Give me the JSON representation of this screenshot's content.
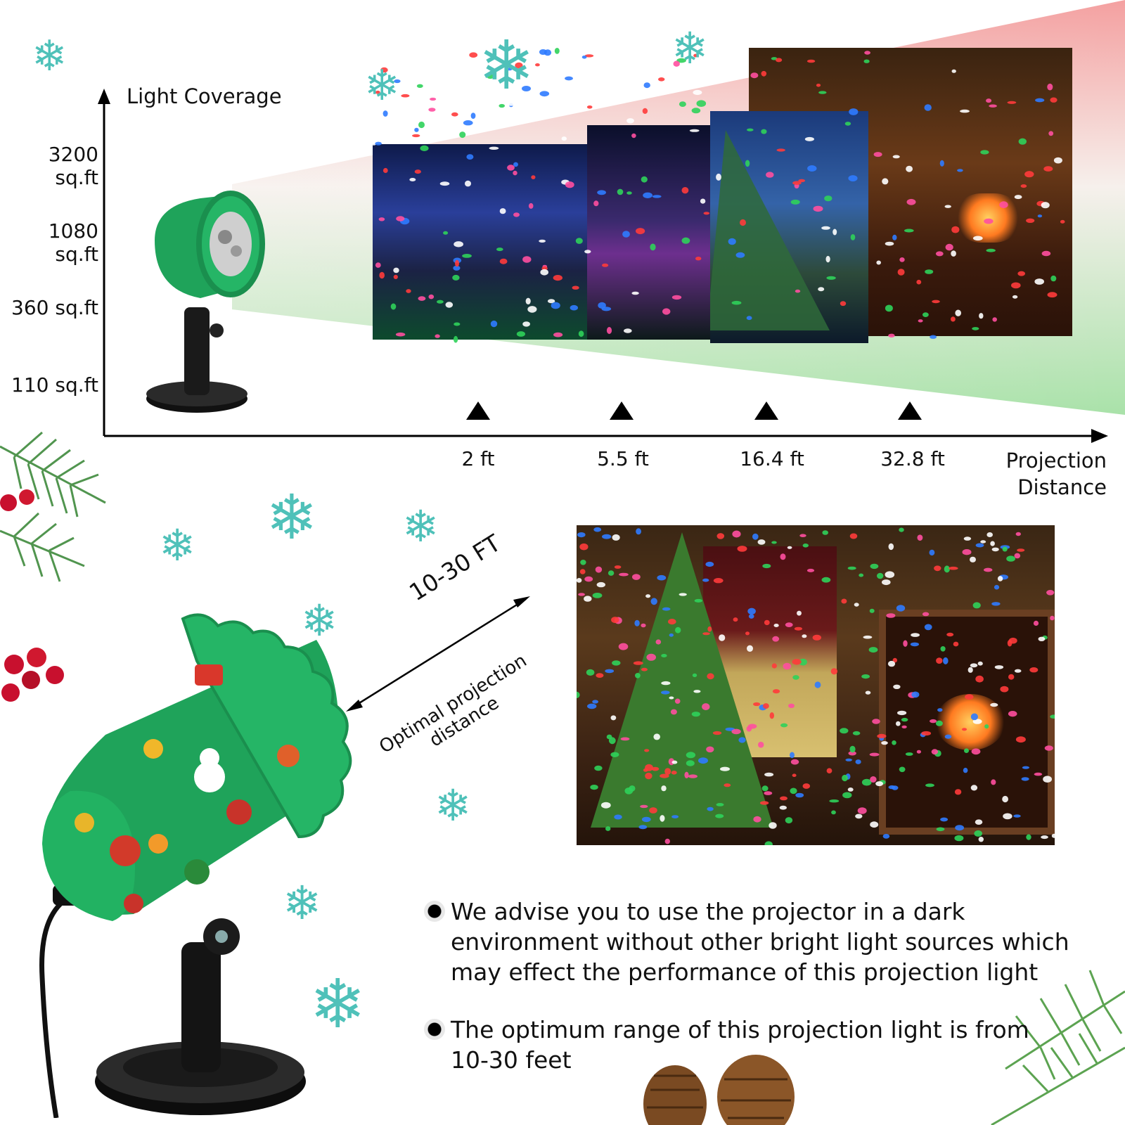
{
  "chart": {
    "y_axis_label": "Light Coverage",
    "x_axis_label_line1": "Projection",
    "x_axis_label_line2": "Distance",
    "y_ticks": [
      "3200 sq.ft",
      "1080 sq.ft",
      "360 sq.ft",
      "110 sq.ft"
    ],
    "x_ticks": [
      "2 ft",
      "5.5 ft",
      "16.4 ft",
      "32.8 ft"
    ]
  },
  "distance_callout": {
    "range": "10-30 FT",
    "line1": "Optimal projection",
    "line2": "distance"
  },
  "notes": [
    "We advise you to use the projector in a dark environment without other bright light sources which may effect the performance of this projection light",
    "The optimum range of this projection light is from 10-30 feet"
  ],
  "icons": {
    "snowflake": "snowflake-icon",
    "projector": "projector-icon",
    "arrow": "double-arrow-icon"
  },
  "colors": {
    "snowflake": "#4fc1b9",
    "projector_body": "#1fa35a",
    "beam_red": "#f2a2a2",
    "beam_green": "#bfe8bf"
  }
}
